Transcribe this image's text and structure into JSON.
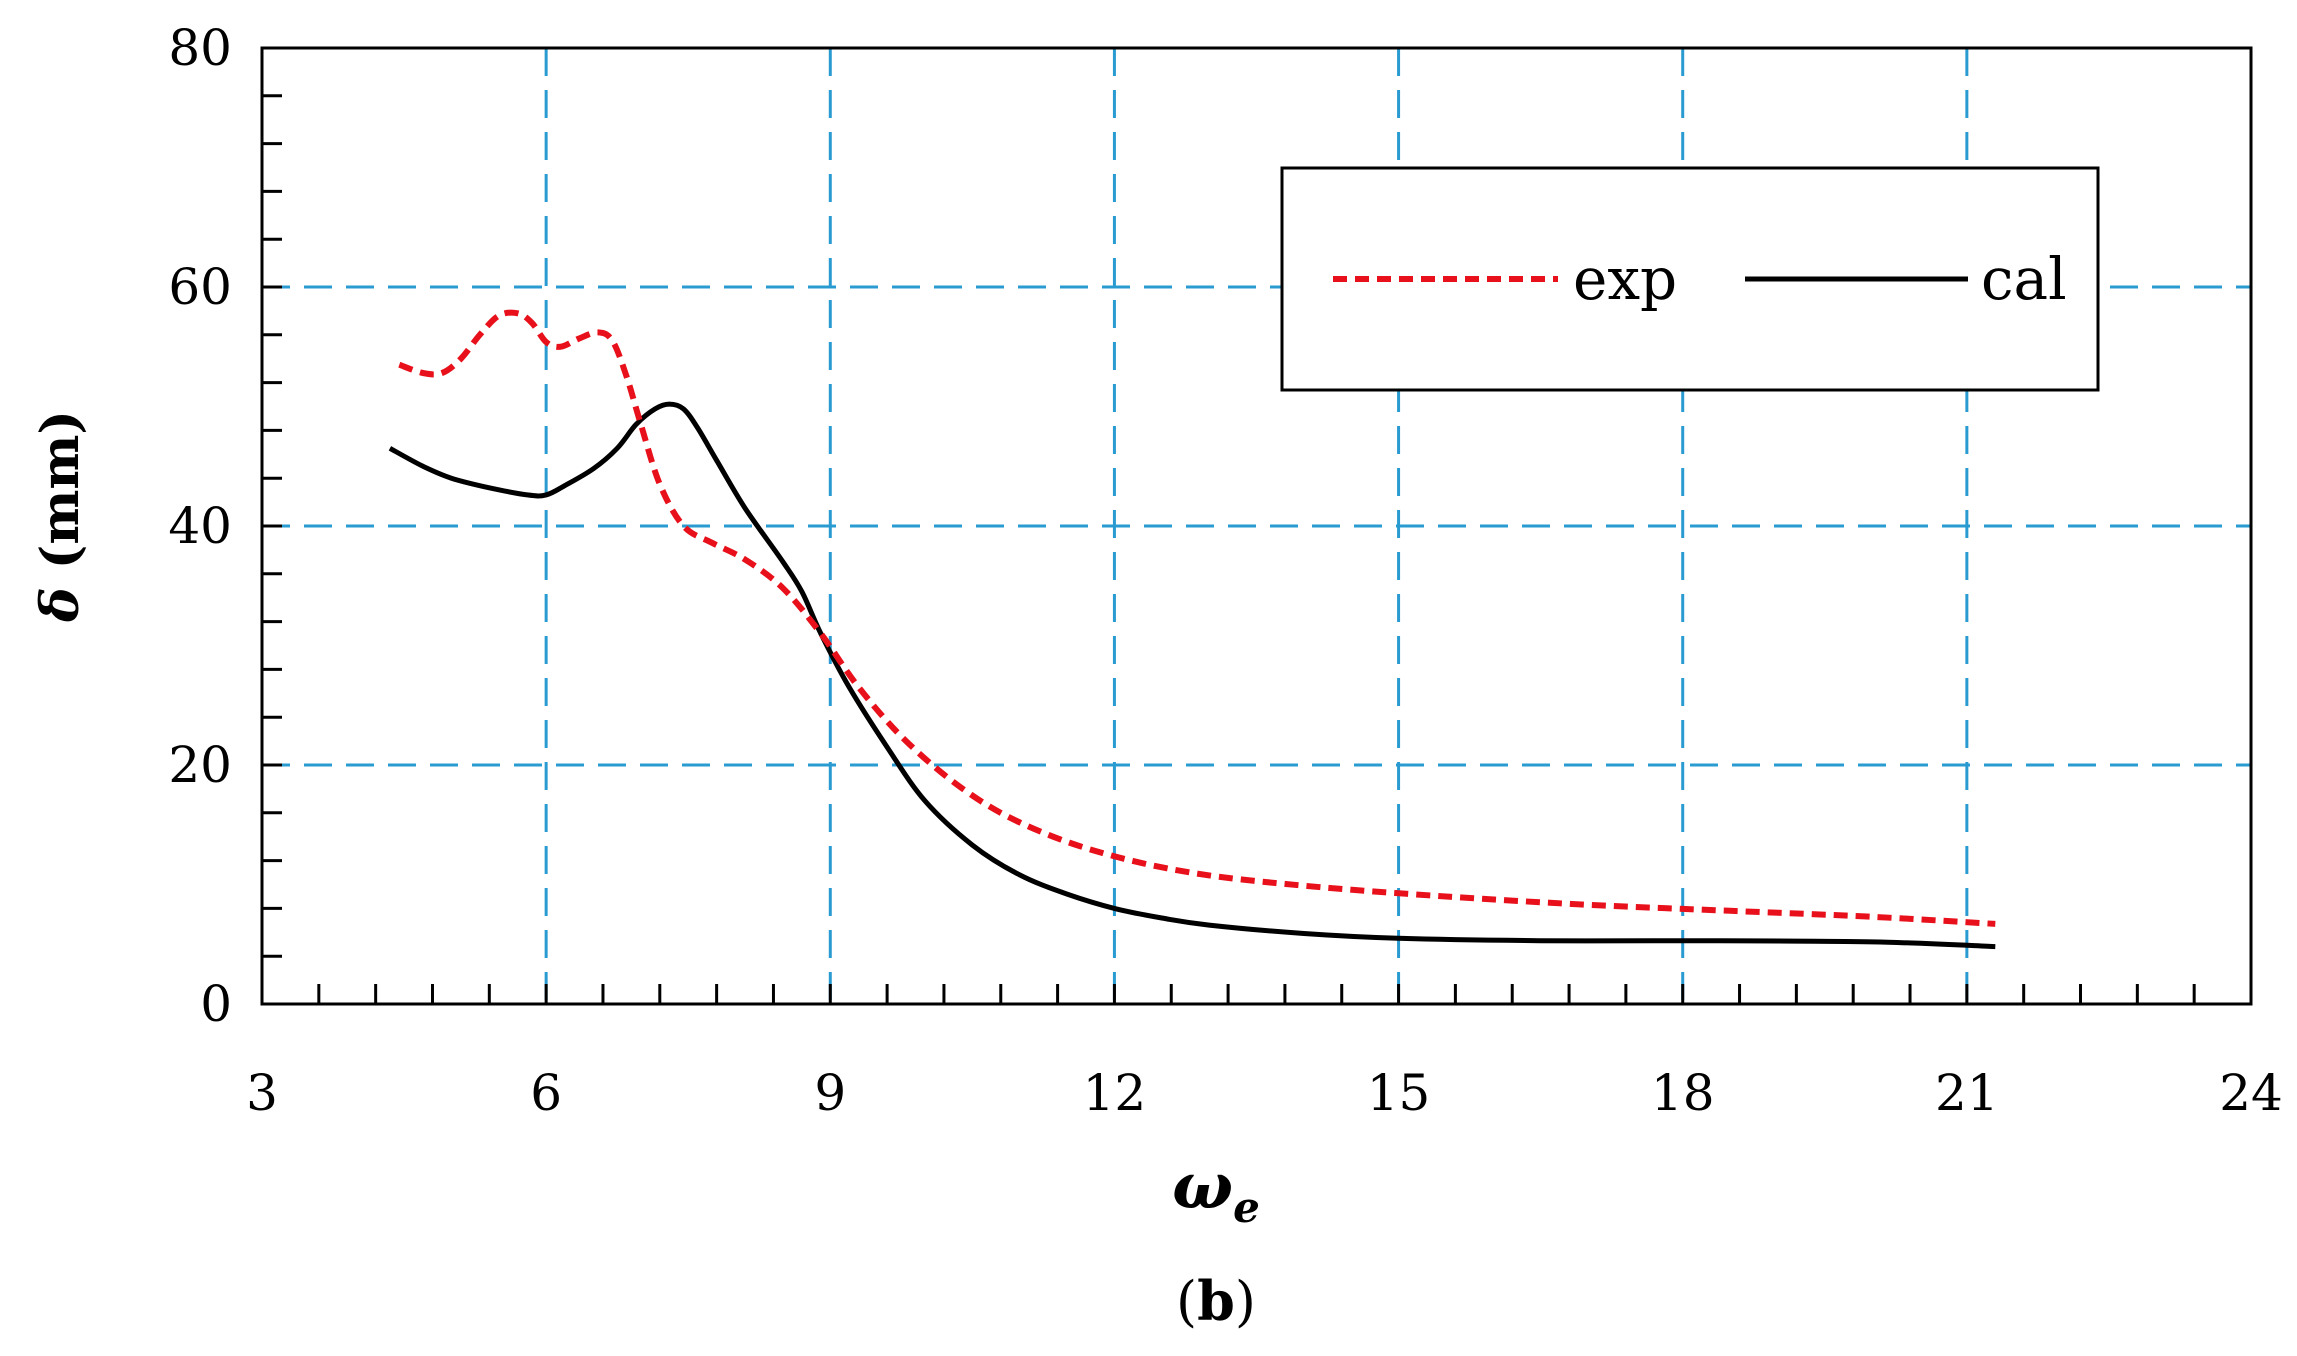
{
  "chart_data": {
    "type": "line",
    "title": "",
    "caption": {
      "open": "(",
      "letter": "b",
      "close": ")"
    },
    "xlabel": {
      "main": "ω",
      "subscript": "e"
    },
    "ylabel": {
      "symbol": "δ",
      "unit": " (mm)"
    },
    "xlim": [
      3,
      24
    ],
    "ylim": [
      0,
      80
    ],
    "x_ticks": [
      3,
      6,
      9,
      12,
      15,
      18,
      21,
      24
    ],
    "x_tick_labels": [
      "3",
      "6",
      "9",
      "12",
      "15",
      "18",
      "21",
      "24"
    ],
    "y_ticks": [
      0,
      20,
      40,
      60,
      80
    ],
    "y_tick_labels": [
      "0",
      "20",
      "40",
      "60",
      "80"
    ],
    "x_minor_step": 0.6,
    "y_minor_step": 4,
    "grid": true,
    "legend_position": "top-right",
    "series": [
      {
        "name": "exp",
        "style": "dashed",
        "color": "#e8101a",
        "x": [
          4.45,
          4.7,
          4.9,
          5.1,
          5.3,
          5.5,
          5.7,
          5.85,
          6.0,
          6.15,
          6.35,
          6.55,
          6.7,
          6.85,
          7.0,
          7.2,
          7.45,
          7.75,
          8.1,
          8.5,
          8.9,
          9.3,
          9.8,
          10.4,
          11.0,
          11.8,
          12.8,
          14.0,
          15.5,
          17.0,
          18.5,
          20.0,
          21.3
        ],
        "y": [
          53.5,
          52.8,
          52.8,
          54.0,
          56.0,
          57.6,
          57.8,
          57.0,
          55.4,
          55.0,
          55.7,
          56.2,
          55.5,
          52.5,
          48.5,
          43.5,
          40.0,
          38.6,
          37.2,
          34.8,
          31.0,
          26.5,
          22.0,
          18.0,
          15.2,
          12.8,
          11.0,
          9.9,
          9.0,
          8.3,
          7.8,
          7.3,
          6.7
        ]
      },
      {
        "name": "cal",
        "style": "solid",
        "color": "#000000",
        "x": [
          4.35,
          4.7,
          5.0,
          5.4,
          5.8,
          6.0,
          6.2,
          6.5,
          6.75,
          6.95,
          7.15,
          7.3,
          7.45,
          7.6,
          7.8,
          8.1,
          8.5,
          8.7,
          8.9,
          9.2,
          9.6,
          10.0,
          10.5,
          11.0,
          11.5,
          12.0,
          12.5,
          13.0,
          14.0,
          15.0,
          16.5,
          18.0,
          20.0,
          21.3
        ],
        "y": [
          46.5,
          45.0,
          44.0,
          43.2,
          42.6,
          42.6,
          43.4,
          44.8,
          46.5,
          48.5,
          49.8,
          50.2,
          49.8,
          48.2,
          45.5,
          41.5,
          37.0,
          34.5,
          31.0,
          26.5,
          21.5,
          17.0,
          13.3,
          10.8,
          9.2,
          8.0,
          7.2,
          6.6,
          5.9,
          5.5,
          5.3,
          5.3,
          5.2,
          4.8
        ]
      }
    ]
  }
}
